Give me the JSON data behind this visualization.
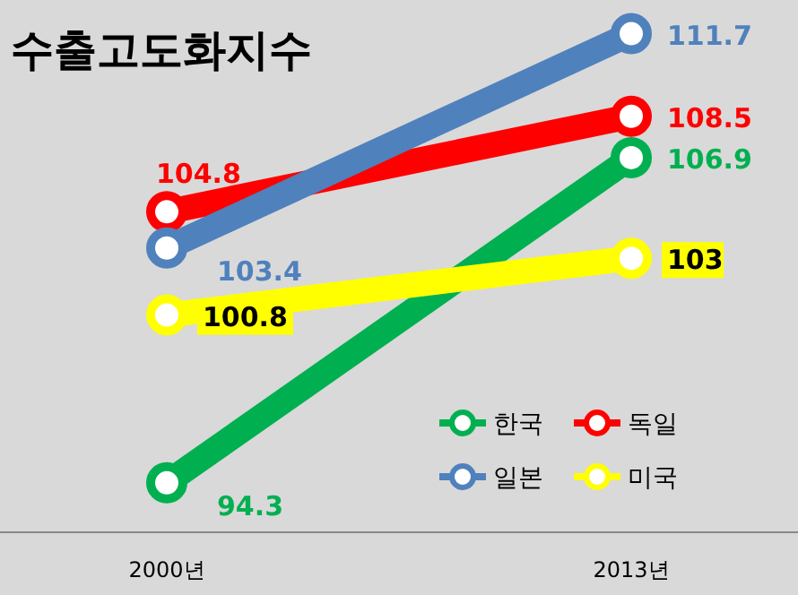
{
  "chart_data": {
    "type": "line",
    "title": "수출고도화지수",
    "categories": [
      "2000년",
      "2013년"
    ],
    "series": [
      {
        "name": "한국",
        "color": "#00b050",
        "values": [
          94.3,
          106.9
        ]
      },
      {
        "name": "독일",
        "color": "#ff0000",
        "values": [
          104.8,
          108.5
        ]
      },
      {
        "name": "일본",
        "color": "#4f81bd",
        "values": [
          103.4,
          111.7
        ]
      },
      {
        "name": "미국",
        "color": "#ffff00",
        "values": [
          100.8,
          103
        ]
      }
    ],
    "data_labels": true,
    "marker": "circle",
    "legend": "bottom right",
    "grid": false
  }
}
